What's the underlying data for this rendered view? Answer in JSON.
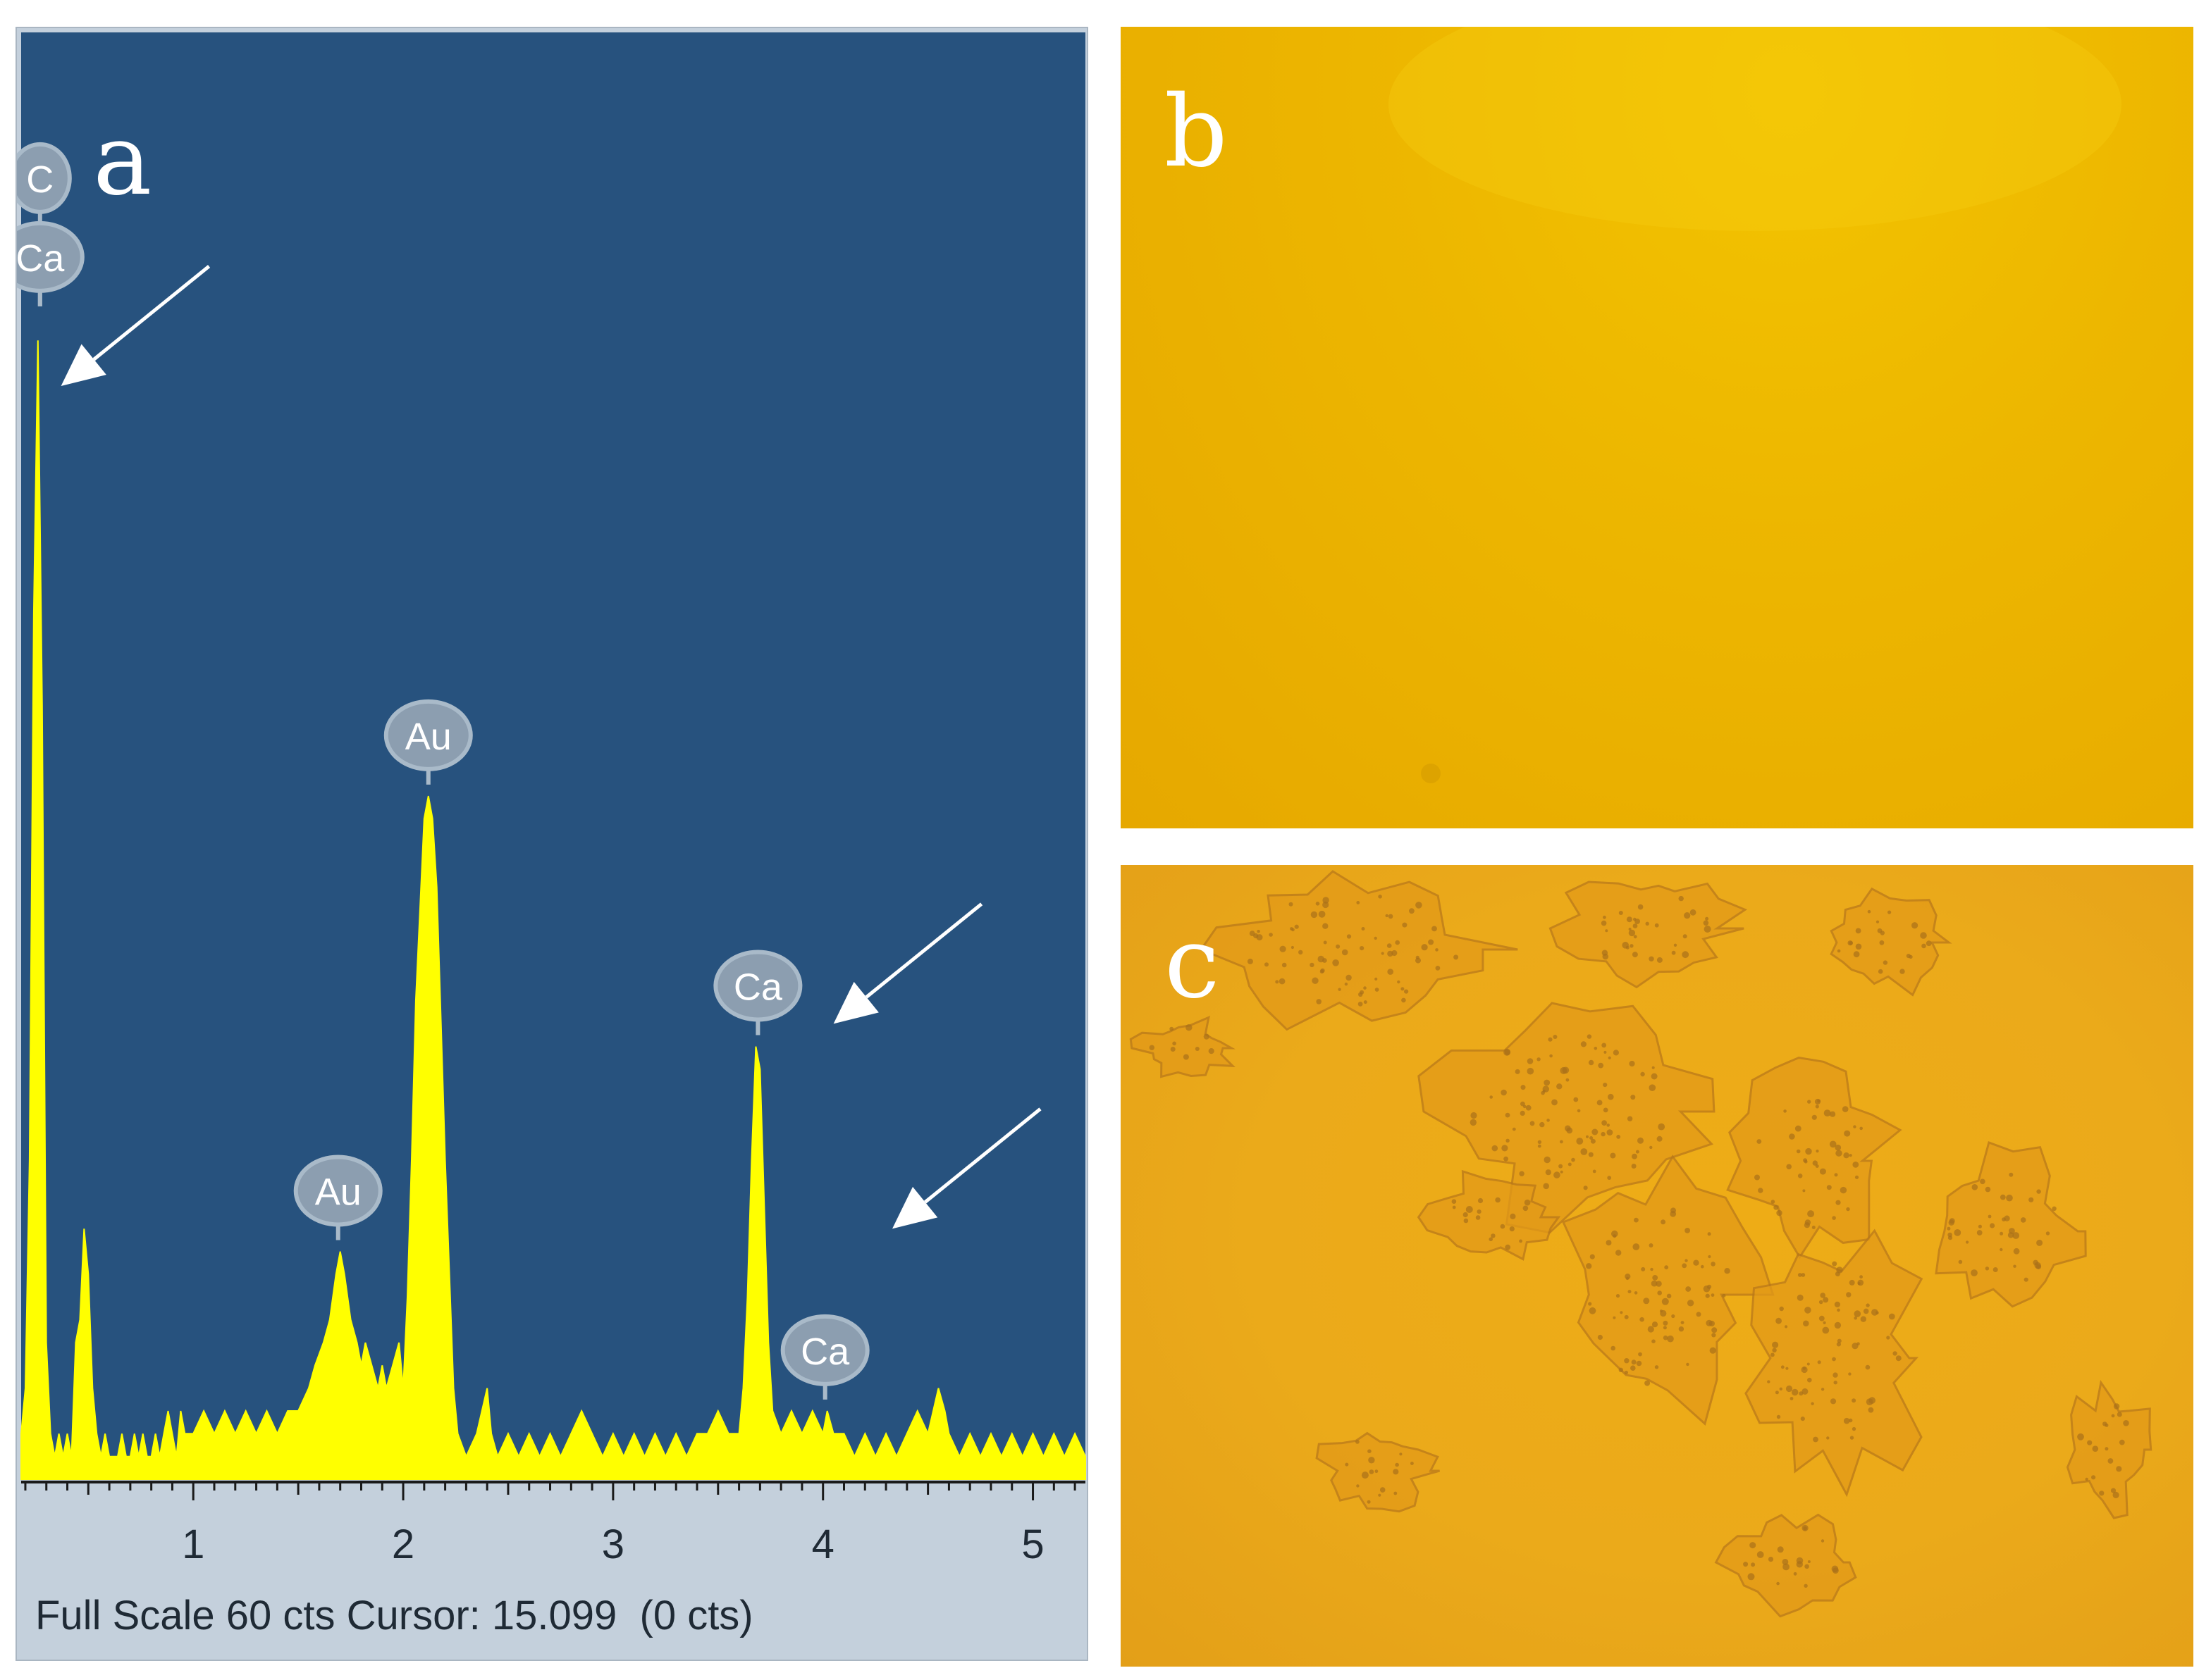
{
  "panels": {
    "a": {
      "letter": "a"
    },
    "b": {
      "letter": "b"
    },
    "c": {
      "letter": "c"
    }
  },
  "status_line": "Full Scale 60 cts Cursor: 15.099  (0 cts)",
  "colors": {
    "plot_background": "#27527e",
    "spectrum": "#ffff00",
    "window_frame": "#c4d0dc",
    "label_badge": "#8c9eb0",
    "micrograph_b": "#edb700",
    "micrograph_c": "#ebaa1a"
  },
  "chart_data": {
    "type": "area",
    "title": "",
    "xlabel": "",
    "ylabel": "",
    "xlim": [
      0.18,
      5.25
    ],
    "ylim": [
      0,
      60
    ],
    "grid": false,
    "x_ticks": [
      1,
      2,
      3,
      4,
      5
    ],
    "series": [
      {
        "points": [
          [
            0.18,
            2
          ],
          [
            0.2,
            4
          ],
          [
            0.22,
            14
          ],
          [
            0.24,
            38
          ],
          [
            0.26,
            50
          ],
          [
            0.28,
            34
          ],
          [
            0.3,
            6
          ],
          [
            0.32,
            2
          ],
          [
            0.34,
            1
          ],
          [
            0.36,
            2
          ],
          [
            0.38,
            1
          ],
          [
            0.4,
            2
          ],
          [
            0.42,
            1
          ],
          [
            0.44,
            6
          ],
          [
            0.46,
            7
          ],
          [
            0.48,
            11
          ],
          [
            0.5,
            9
          ],
          [
            0.52,
            4
          ],
          [
            0.54,
            2
          ],
          [
            0.56,
            1
          ],
          [
            0.58,
            2
          ],
          [
            0.6,
            1
          ],
          [
            0.62,
            1
          ],
          [
            0.64,
            1
          ],
          [
            0.66,
            2
          ],
          [
            0.68,
            1
          ],
          [
            0.7,
            1
          ],
          [
            0.72,
            2
          ],
          [
            0.74,
            1
          ],
          [
            0.76,
            2
          ],
          [
            0.78,
            1
          ],
          [
            0.8,
            1
          ],
          [
            0.82,
            2
          ],
          [
            0.84,
            1
          ],
          [
            0.86,
            2
          ],
          [
            0.88,
            3
          ],
          [
            0.9,
            2
          ],
          [
            0.92,
            1
          ],
          [
            0.94,
            3
          ],
          [
            0.96,
            2
          ],
          [
            1.0,
            2
          ],
          [
            1.05,
            3
          ],
          [
            1.1,
            2
          ],
          [
            1.15,
            3
          ],
          [
            1.2,
            2
          ],
          [
            1.25,
            3
          ],
          [
            1.3,
            2
          ],
          [
            1.35,
            3
          ],
          [
            1.4,
            2
          ],
          [
            1.45,
            3
          ],
          [
            1.5,
            3
          ],
          [
            1.55,
            4
          ],
          [
            1.58,
            5
          ],
          [
            1.62,
            6
          ],
          [
            1.65,
            7
          ],
          [
            1.68,
            9
          ],
          [
            1.7,
            10
          ],
          [
            1.72,
            9
          ],
          [
            1.75,
            7
          ],
          [
            1.78,
            6
          ],
          [
            1.8,
            5
          ],
          [
            1.82,
            6
          ],
          [
            1.85,
            5
          ],
          [
            1.88,
            4
          ],
          [
            1.9,
            5
          ],
          [
            1.92,
            4
          ],
          [
            1.95,
            5
          ],
          [
            1.98,
            6
          ],
          [
            2.0,
            4
          ],
          [
            2.02,
            8
          ],
          [
            2.04,
            14
          ],
          [
            2.06,
            21
          ],
          [
            2.08,
            25
          ],
          [
            2.1,
            29
          ],
          [
            2.12,
            30
          ],
          [
            2.14,
            29
          ],
          [
            2.16,
            26
          ],
          [
            2.18,
            20
          ],
          [
            2.2,
            14
          ],
          [
            2.22,
            9
          ],
          [
            2.24,
            4
          ],
          [
            2.26,
            2
          ],
          [
            2.3,
            1
          ],
          [
            2.35,
            2
          ],
          [
            2.4,
            4
          ],
          [
            2.42,
            2
          ],
          [
            2.45,
            1
          ],
          [
            2.5,
            2
          ],
          [
            2.55,
            1
          ],
          [
            2.6,
            2
          ],
          [
            2.65,
            1
          ],
          [
            2.7,
            2
          ],
          [
            2.75,
            1
          ],
          [
            2.8,
            2
          ],
          [
            2.85,
            3
          ],
          [
            2.9,
            2
          ],
          [
            2.95,
            1
          ],
          [
            3.0,
            2
          ],
          [
            3.05,
            1
          ],
          [
            3.1,
            2
          ],
          [
            3.15,
            1
          ],
          [
            3.2,
            2
          ],
          [
            3.25,
            1
          ],
          [
            3.3,
            2
          ],
          [
            3.35,
            1
          ],
          [
            3.4,
            2
          ],
          [
            3.45,
            2
          ],
          [
            3.5,
            3
          ],
          [
            3.55,
            2
          ],
          [
            3.6,
            2
          ],
          [
            3.62,
            4
          ],
          [
            3.64,
            8
          ],
          [
            3.66,
            14
          ],
          [
            3.68,
            19
          ],
          [
            3.7,
            18
          ],
          [
            3.72,
            12
          ],
          [
            3.74,
            6
          ],
          [
            3.76,
            3
          ],
          [
            3.8,
            2
          ],
          [
            3.85,
            3
          ],
          [
            3.9,
            2
          ],
          [
            3.95,
            3
          ],
          [
            4.0,
            2
          ],
          [
            4.02,
            3
          ],
          [
            4.05,
            2
          ],
          [
            4.1,
            2
          ],
          [
            4.15,
            1
          ],
          [
            4.2,
            2
          ],
          [
            4.25,
            1
          ],
          [
            4.3,
            2
          ],
          [
            4.35,
            1
          ],
          [
            4.4,
            2
          ],
          [
            4.45,
            3
          ],
          [
            4.5,
            2
          ],
          [
            4.55,
            4
          ],
          [
            4.58,
            3
          ],
          [
            4.6,
            2
          ],
          [
            4.65,
            1
          ],
          [
            4.7,
            2
          ],
          [
            4.75,
            1
          ],
          [
            4.8,
            2
          ],
          [
            4.85,
            1
          ],
          [
            4.9,
            2
          ],
          [
            4.95,
            1
          ],
          [
            5.0,
            2
          ],
          [
            5.05,
            1
          ],
          [
            5.1,
            2
          ],
          [
            5.15,
            1
          ],
          [
            5.2,
            2
          ],
          [
            5.25,
            1
          ]
        ]
      }
    ],
    "peak_labels": [
      {
        "text": "C",
        "x": 0.27,
        "y": 51.5
      },
      {
        "text": "Ca",
        "x": 0.27,
        "y": 51.5
      },
      {
        "text": "Au",
        "x": 1.69,
        "y": 10.5
      },
      {
        "text": "Au",
        "x": 2.12,
        "y": 30.5
      },
      {
        "text": "Ca",
        "x": 3.69,
        "y": 19.5
      },
      {
        "text": "Ca",
        "x": 4.01,
        "y": 3.5
      }
    ],
    "arrows": [
      {
        "to_x": 0.37,
        "to_y": 48
      },
      {
        "to_x": 4.05,
        "to_y": 20
      },
      {
        "to_x": 4.33,
        "to_y": 11
      }
    ]
  }
}
